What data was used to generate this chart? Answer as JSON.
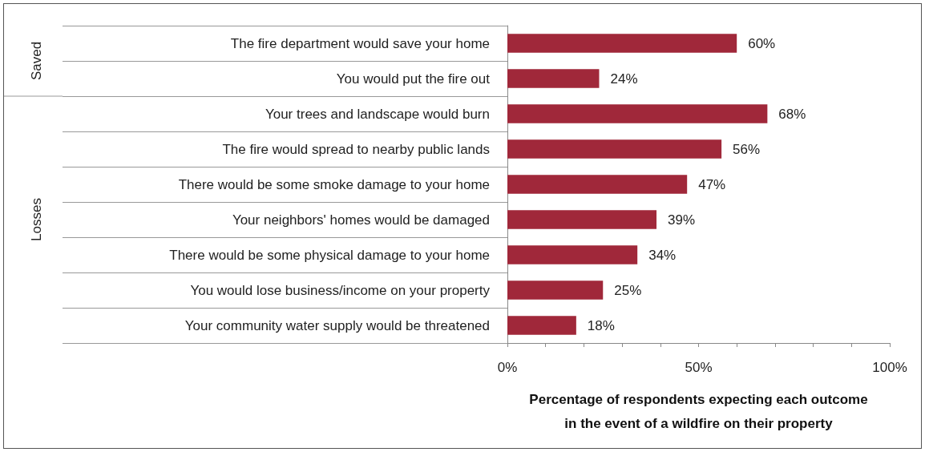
{
  "chart_data": {
    "type": "bar",
    "orientation": "horizontal",
    "categories": [
      "The fire department would save your home",
      "You would put the fire out",
      "Your trees and landscape would burn",
      "The fire would spread to nearby public lands",
      "There would be some smoke damage to your home",
      "Your neighbors' homes would be damaged",
      "There would be some physical damage to your home",
      "You would lose business/income on your property",
      "Your community water supply would be threatened"
    ],
    "values": [
      60,
      24,
      68,
      56,
      47,
      39,
      34,
      25,
      18
    ],
    "value_labels": [
      "60%",
      "24%",
      "68%",
      "56%",
      "47%",
      "39%",
      "34%",
      "25%",
      "18%"
    ],
    "color": "#a0283a",
    "xlim": [
      0,
      100
    ],
    "xticks": [
      {
        "value": 0,
        "label": "0%"
      },
      {
        "value": 10,
        "label": null
      },
      {
        "value": 20,
        "label": null
      },
      {
        "value": 30,
        "label": null
      },
      {
        "value": 40,
        "label": null
      },
      {
        "value": 50,
        "label": "50%"
      },
      {
        "value": 60,
        "label": null
      },
      {
        "value": 70,
        "label": null
      },
      {
        "value": 80,
        "label": null
      },
      {
        "value": 90,
        "label": null
      },
      {
        "value": 100,
        "label": "100%"
      }
    ],
    "xlabel": "Percentage of respondents expecting each outcome\nin the event of a wildfire on their property",
    "annotations": [
      "Saved",
      "Losses"
    ],
    "grid": false
  }
}
